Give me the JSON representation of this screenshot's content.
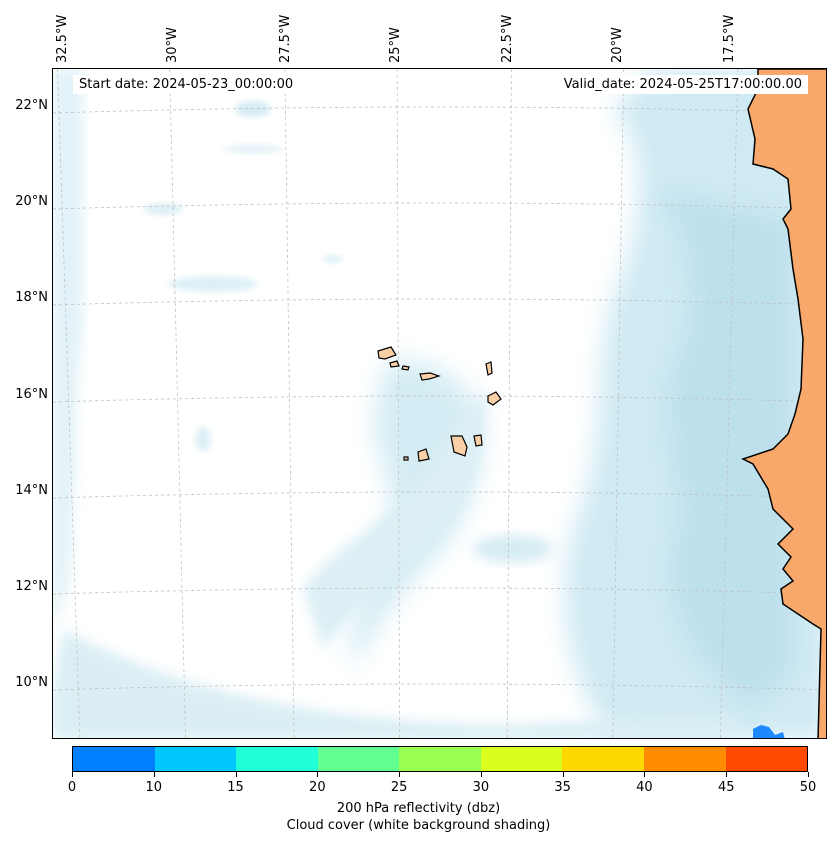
{
  "map": {
    "start_date": "Start date: 2024-05-23_00:00:00",
    "valid_date": "Valid_date: 2024-05-25T17:00:00.00",
    "longitude_labels": [
      "32.5°W",
      "30°W",
      "27.5°W",
      "25°W",
      "22.5°W",
      "20°W",
      "17.5°W"
    ],
    "latitude_labels": [
      "22°N",
      "20°N",
      "18°N",
      "16°N",
      "14°N",
      "12°N",
      "10°N"
    ],
    "land_color": "#f7a86a",
    "island_color": "#f9cfa8",
    "cloud_color": "#a8d8e8"
  },
  "colorbar": {
    "ticks": [
      "0",
      "10",
      "15",
      "20",
      "25",
      "30",
      "35",
      "40",
      "45",
      "50"
    ],
    "colors": [
      "#0080ff",
      "#00c8ff",
      "#20ffd8",
      "#60ff90",
      "#98ff50",
      "#d8ff20",
      "#ffd800",
      "#ff8c00",
      "#ff4a00"
    ],
    "title_line1": "200 hPa reflectivity (dbz)",
    "title_line2": "Cloud cover (white background shading)"
  }
}
